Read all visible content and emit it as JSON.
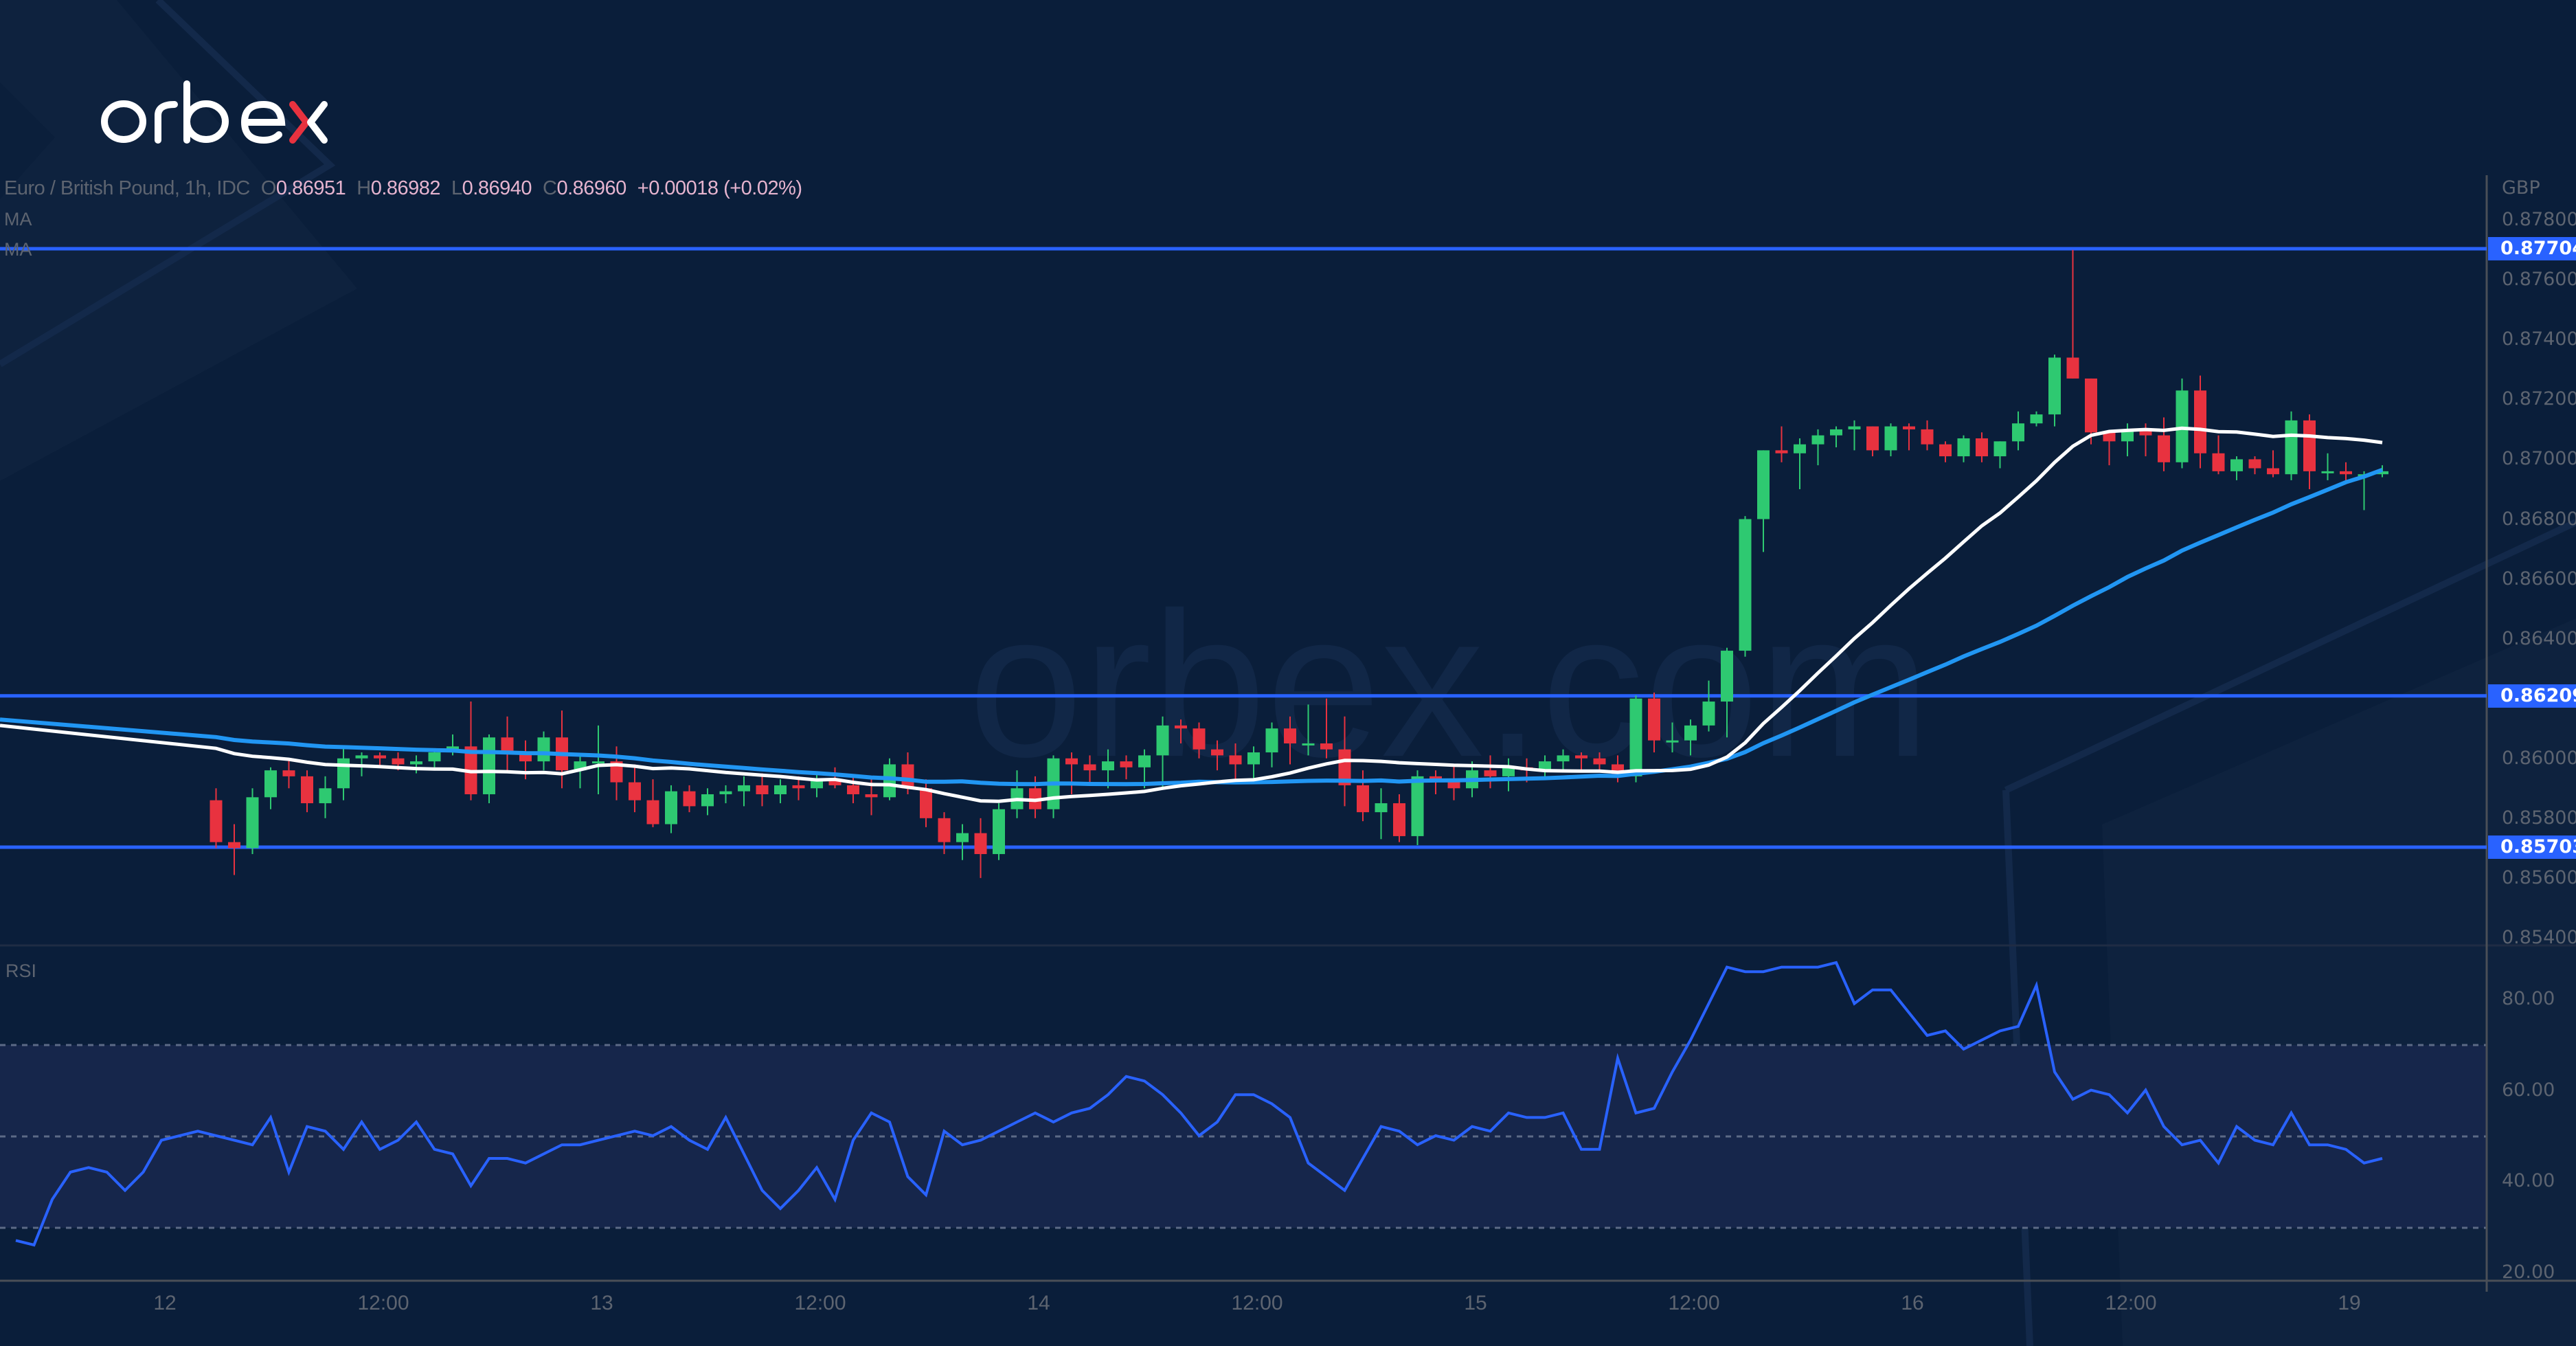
{
  "brand": {
    "name": "orbex",
    "watermark": "orbex.com",
    "accent_red": "#e8323f"
  },
  "legend": {
    "symbol": "Euro / British Pound, 1h, IDC",
    "open_label": "O",
    "open": "0.86951",
    "high_label": "H",
    "high": "0.86982",
    "low_label": "L",
    "low": "0.86940",
    "close_label": "C",
    "close": "0.86960",
    "change": "+0.00018 (+0.02%)",
    "ma1_label": "MA",
    "ma2_label": "MA"
  },
  "rsi_panel": {
    "label": "RSI"
  },
  "price_axis": {
    "currency": "GBP",
    "ticks": [
      "0.87800",
      "0.87600",
      "0.87400",
      "0.87200",
      "0.87000",
      "0.86800",
      "0.86600",
      "0.86400",
      "0.86000",
      "0.85800",
      "0.85600",
      "0.85400"
    ],
    "tagged_levels": [
      "0.87704",
      "0.86209",
      "0.85703"
    ]
  },
  "rsi_axis": {
    "ticks": [
      "80.00",
      "60.00",
      "40.00",
      "20.00"
    ]
  },
  "time_axis": {
    "ticks": [
      "12",
      "12:00",
      "13",
      "12:00",
      "14",
      "12:00",
      "15",
      "12:00",
      "16",
      "12:00",
      "19"
    ]
  },
  "colors": {
    "background": "#0a1e3a",
    "up": "#2ec971",
    "down": "#e8323f",
    "ma_fast": "#ffffff",
    "ma_slow": "#2196f3",
    "level": "#2962ff",
    "rsi": "#2962ff",
    "rsi_band": "#16264b"
  },
  "chart_data": {
    "type": "candlestick",
    "title": "Euro / British Pound, 1h, IDC",
    "ylabel": "GBP",
    "ylim": [
      0.8535,
      0.8782
    ],
    "horizontal_levels": [
      0.87704,
      0.86209,
      0.85703
    ],
    "x_ticks": [
      "12",
      "12:00",
      "13",
      "12:00",
      "14",
      "12:00",
      "15",
      "12:00",
      "16",
      "12:00",
      "19"
    ],
    "last_ohlc": {
      "open": 0.86951,
      "high": 0.86982,
      "low": 0.8694,
      "close": 0.8696,
      "change": 0.00018,
      "change_pct": 0.02
    },
    "candles": [
      [
        0.8586,
        0.859,
        0.857,
        0.8572
      ],
      [
        0.8572,
        0.8578,
        0.8561,
        0.857
      ],
      [
        0.857,
        0.859,
        0.8568,
        0.8587
      ],
      [
        0.8587,
        0.8597,
        0.8583,
        0.8596
      ],
      [
        0.8596,
        0.86,
        0.859,
        0.8594
      ],
      [
        0.8594,
        0.8596,
        0.8582,
        0.8585
      ],
      [
        0.8585,
        0.8594,
        0.858,
        0.859
      ],
      [
        0.859,
        0.8604,
        0.8586,
        0.86
      ],
      [
        0.86,
        0.8602,
        0.8594,
        0.8601
      ],
      [
        0.8601,
        0.8602,
        0.8597,
        0.86
      ],
      [
        0.86,
        0.8602,
        0.8596,
        0.8598
      ],
      [
        0.8598,
        0.8601,
        0.8595,
        0.8599
      ],
      [
        0.8599,
        0.8603,
        0.8597,
        0.8602
      ],
      [
        0.8602,
        0.8608,
        0.8601,
        0.8604
      ],
      [
        0.8604,
        0.8619,
        0.8586,
        0.8588
      ],
      [
        0.8588,
        0.8608,
        0.8585,
        0.8607
      ],
      [
        0.8607,
        0.8614,
        0.8596,
        0.8602
      ],
      [
        0.8602,
        0.8606,
        0.8593,
        0.8599
      ],
      [
        0.8599,
        0.8609,
        0.8596,
        0.8607
      ],
      [
        0.8607,
        0.8616,
        0.859,
        0.8596
      ],
      [
        0.8596,
        0.8601,
        0.859,
        0.8599
      ],
      [
        0.8599,
        0.8611,
        0.8588,
        0.8599
      ],
      [
        0.8599,
        0.8604,
        0.8586,
        0.8592
      ],
      [
        0.8592,
        0.8598,
        0.8582,
        0.8586
      ],
      [
        0.8586,
        0.8593,
        0.8577,
        0.8578
      ],
      [
        0.8578,
        0.8591,
        0.8575,
        0.8589
      ],
      [
        0.8589,
        0.8591,
        0.8582,
        0.8584
      ],
      [
        0.8584,
        0.859,
        0.8581,
        0.8588
      ],
      [
        0.8588,
        0.8591,
        0.8585,
        0.8589
      ],
      [
        0.8589,
        0.8594,
        0.8584,
        0.8591
      ],
      [
        0.8591,
        0.8595,
        0.8584,
        0.8588
      ],
      [
        0.8588,
        0.8593,
        0.8585,
        0.8591
      ],
      [
        0.8591,
        0.8594,
        0.8586,
        0.859
      ],
      [
        0.859,
        0.8595,
        0.8587,
        0.8593
      ],
      [
        0.8593,
        0.8597,
        0.859,
        0.8591
      ],
      [
        0.8591,
        0.8594,
        0.8585,
        0.8588
      ],
      [
        0.8588,
        0.8594,
        0.8581,
        0.8587
      ],
      [
        0.8587,
        0.86,
        0.8586,
        0.8598
      ],
      [
        0.8598,
        0.8602,
        0.8588,
        0.859
      ],
      [
        0.859,
        0.8593,
        0.8577,
        0.858
      ],
      [
        0.858,
        0.8582,
        0.8568,
        0.8572
      ],
      [
        0.8572,
        0.8578,
        0.8566,
        0.8575
      ],
      [
        0.8575,
        0.858,
        0.856,
        0.8568
      ],
      [
        0.8568,
        0.8585,
        0.8566,
        0.8583
      ],
      [
        0.8583,
        0.8596,
        0.858,
        0.859
      ],
      [
        0.859,
        0.8594,
        0.858,
        0.8583
      ],
      [
        0.8583,
        0.8601,
        0.858,
        0.86
      ],
      [
        0.86,
        0.8602,
        0.8588,
        0.8598
      ],
      [
        0.8598,
        0.8601,
        0.8591,
        0.8596
      ],
      [
        0.8596,
        0.8603,
        0.859,
        0.8599
      ],
      [
        0.8599,
        0.8601,
        0.8593,
        0.8597
      ],
      [
        0.8597,
        0.8603,
        0.859,
        0.8601
      ],
      [
        0.8601,
        0.8614,
        0.859,
        0.8611
      ],
      [
        0.8611,
        0.8613,
        0.8605,
        0.861
      ],
      [
        0.861,
        0.8612,
        0.86,
        0.8603
      ],
      [
        0.8603,
        0.8606,
        0.8596,
        0.8601
      ],
      [
        0.8601,
        0.8605,
        0.8593,
        0.8598
      ],
      [
        0.8598,
        0.8604,
        0.8592,
        0.8602
      ],
      [
        0.8602,
        0.8612,
        0.8597,
        0.861
      ],
      [
        0.861,
        0.8614,
        0.8598,
        0.8605
      ],
      [
        0.8605,
        0.8618,
        0.8601,
        0.8605
      ],
      [
        0.8605,
        0.862,
        0.86,
        0.8603
      ],
      [
        0.8603,
        0.8614,
        0.8584,
        0.8591
      ],
      [
        0.8591,
        0.8596,
        0.8579,
        0.8582
      ],
      [
        0.8582,
        0.859,
        0.8573,
        0.8585
      ],
      [
        0.8585,
        0.8588,
        0.8572,
        0.8574
      ],
      [
        0.8574,
        0.8596,
        0.8571,
        0.8594
      ],
      [
        0.8594,
        0.8596,
        0.8588,
        0.8593
      ],
      [
        0.8593,
        0.8598,
        0.8586,
        0.859
      ],
      [
        0.859,
        0.8599,
        0.8587,
        0.8596
      ],
      [
        0.8596,
        0.8601,
        0.859,
        0.8594
      ],
      [
        0.8594,
        0.86,
        0.8589,
        0.8597
      ],
      [
        0.8597,
        0.86,
        0.8592,
        0.8596
      ],
      [
        0.8596,
        0.8601,
        0.8593,
        0.8599
      ],
      [
        0.8599,
        0.8603,
        0.8596,
        0.8601
      ],
      [
        0.8601,
        0.8602,
        0.8596,
        0.86
      ],
      [
        0.86,
        0.8602,
        0.8596,
        0.8598
      ],
      [
        0.8598,
        0.8601,
        0.8592,
        0.8594
      ],
      [
        0.8594,
        0.8621,
        0.8592,
        0.862
      ],
      [
        0.862,
        0.8622,
        0.8602,
        0.8606
      ],
      [
        0.8606,
        0.8612,
        0.8602,
        0.8606
      ],
      [
        0.8606,
        0.8613,
        0.8601,
        0.8611
      ],
      [
        0.8611,
        0.8626,
        0.8609,
        0.8619
      ],
      [
        0.8619,
        0.8637,
        0.8607,
        0.8636
      ],
      [
        0.8636,
        0.8681,
        0.8634,
        0.868
      ],
      [
        0.868,
        0.8703,
        0.8669,
        0.8703
      ],
      [
        0.8703,
        0.8711,
        0.8699,
        0.8702
      ],
      [
        0.8702,
        0.8707,
        0.869,
        0.8705
      ],
      [
        0.8705,
        0.871,
        0.8698,
        0.8708
      ],
      [
        0.8708,
        0.8711,
        0.8704,
        0.871
      ],
      [
        0.871,
        0.8713,
        0.8703,
        0.8711
      ],
      [
        0.8711,
        0.8711,
        0.8701,
        0.8703
      ],
      [
        0.8703,
        0.8712,
        0.8701,
        0.8711
      ],
      [
        0.8711,
        0.8712,
        0.8703,
        0.871
      ],
      [
        0.871,
        0.8713,
        0.8703,
        0.8705
      ],
      [
        0.8705,
        0.8706,
        0.8699,
        0.8701
      ],
      [
        0.8701,
        0.8708,
        0.8699,
        0.8707
      ],
      [
        0.8707,
        0.8709,
        0.8699,
        0.8701
      ],
      [
        0.8701,
        0.8706,
        0.8697,
        0.8706
      ],
      [
        0.8706,
        0.8716,
        0.8703,
        0.8712
      ],
      [
        0.8712,
        0.8716,
        0.8711,
        0.8715
      ],
      [
        0.8715,
        0.8735,
        0.8711,
        0.8734
      ],
      [
        0.8734,
        0.877,
        0.8729,
        0.8727
      ],
      [
        0.8727,
        0.8718,
        0.8705,
        0.8709
      ],
      [
        0.8709,
        0.8709,
        0.8698,
        0.8706
      ],
      [
        0.8706,
        0.8712,
        0.8701,
        0.871
      ],
      [
        0.871,
        0.8712,
        0.8701,
        0.8708
      ],
      [
        0.8708,
        0.8714,
        0.8696,
        0.8699
      ],
      [
        0.8699,
        0.8727,
        0.8697,
        0.8723
      ],
      [
        0.8723,
        0.8728,
        0.8697,
        0.8702
      ],
      [
        0.8702,
        0.8708,
        0.8695,
        0.8696
      ],
      [
        0.8696,
        0.8701,
        0.8693,
        0.87
      ],
      [
        0.87,
        0.8701,
        0.8695,
        0.8697
      ],
      [
        0.8697,
        0.8703,
        0.8694,
        0.8695
      ],
      [
        0.8695,
        0.8716,
        0.8693,
        0.8713
      ],
      [
        0.8713,
        0.8715,
        0.869,
        0.8696
      ],
      [
        0.8696,
        0.8702,
        0.8693,
        0.8696
      ],
      [
        0.8696,
        0.8699,
        0.8693,
        0.8695
      ],
      [
        0.8695,
        0.8696,
        0.8683,
        0.8695
      ],
      [
        0.8695,
        0.8698,
        0.8694,
        0.8696
      ]
    ],
    "ma_fast_values_desc": "white moving average, shorter period",
    "ma_slow_values_desc": "blue moving average, longer period",
    "rsi": {
      "ylim": [
        15,
        95
      ],
      "levels": [
        70,
        50,
        30
      ],
      "values": [
        27,
        26,
        36,
        42,
        43,
        42,
        38,
        42,
        49,
        50,
        51,
        50,
        49,
        48,
        54,
        42,
        52,
        51,
        47,
        53,
        47,
        49,
        53,
        47,
        46,
        39,
        45,
        45,
        44,
        46,
        48,
        48,
        49,
        50,
        51,
        50,
        52,
        49,
        47,
        54,
        46,
        38,
        34,
        38,
        43,
        36,
        49,
        55,
        53,
        41,
        37,
        51,
        48,
        49,
        51,
        53,
        55,
        53,
        55,
        56,
        59,
        63,
        62,
        59,
        55,
        50,
        53,
        59,
        59,
        57,
        54,
        44,
        41,
        38,
        45,
        52,
        51,
        48,
        50,
        49,
        52,
        51,
        55,
        54,
        54,
        55,
        47,
        47,
        67,
        55,
        56,
        64,
        71,
        79,
        87,
        86,
        86,
        87,
        87,
        87,
        88,
        79,
        82,
        82,
        77,
        72,
        73,
        69,
        71,
        73,
        74,
        83,
        64,
        58,
        60,
        59,
        55,
        60,
        52,
        48,
        49,
        44,
        52,
        49,
        48,
        55,
        48,
        48,
        47,
        44,
        45
      ]
    }
  }
}
